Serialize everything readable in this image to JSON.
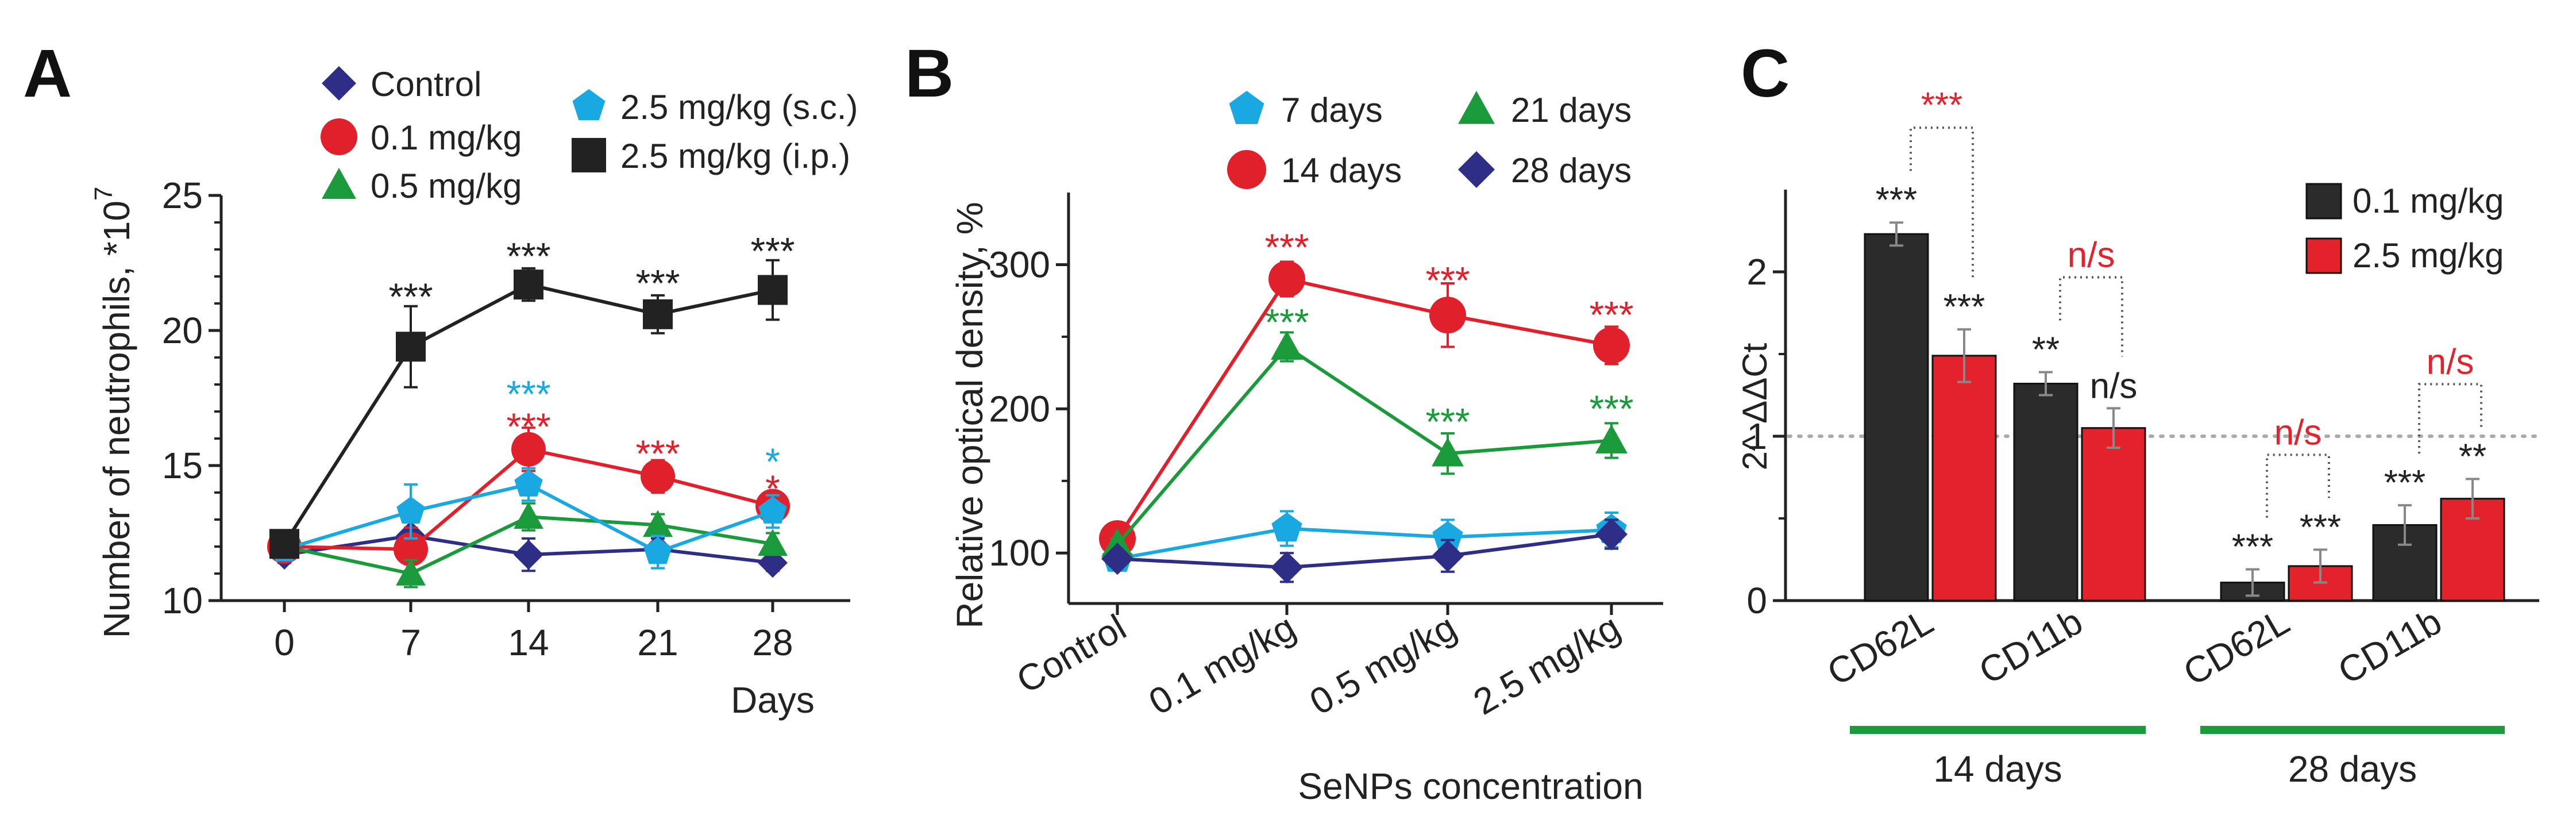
{
  "chart_data": [
    {
      "panel": "A",
      "type": "line",
      "ylabel": "Number of neutrophils, *10",
      "ylabel_exp": "7",
      "xlabel": "Days",
      "x": [
        0,
        7,
        14,
        21,
        28
      ],
      "x_ticks": [
        "0",
        "7",
        "14",
        "21",
        "28"
      ],
      "ylim": [
        10,
        25
      ],
      "y_ticks": [
        "10",
        "15",
        "20",
        "25"
      ],
      "series": [
        {
          "name": "Control",
          "marker": "diamond",
          "color": "#2e2e86",
          "values": [
            11.7,
            12.4,
            11.7,
            11.9,
            11.4
          ],
          "err": [
            0.3,
            0.5,
            0.6,
            0.4,
            0.3
          ]
        },
        {
          "name": "0.1 mg/kg",
          "marker": "circle",
          "color": "#e0202a",
          "values": [
            12.0,
            11.9,
            15.6,
            14.6,
            13.5
          ],
          "err": [
            0.3,
            0.8,
            0.8,
            0.6,
            0.5
          ]
        },
        {
          "name": "0.5 mg/kg",
          "marker": "triangle",
          "color": "#1a9a3a",
          "values": [
            12.0,
            11.0,
            13.1,
            12.8,
            12.1
          ],
          "err": [
            0.3,
            0.5,
            0.5,
            0.4,
            0.4
          ]
        },
        {
          "name": "2.5 mg/kg (s.c.)",
          "marker": "pentagon",
          "color": "#19a8e0",
          "values": [
            11.9,
            13.3,
            14.3,
            11.8,
            13.3
          ],
          "err": [
            0.3,
            1.0,
            0.6,
            0.6,
            0.6
          ]
        },
        {
          "name": "2.5 mg/kg (i.p.)",
          "marker": "square",
          "color": "#222222",
          "values": [
            12.1,
            19.4,
            21.7,
            20.6,
            21.5
          ],
          "err": [
            0.3,
            1.5,
            0.6,
            0.7,
            1.1
          ]
        }
      ],
      "annotations": [
        {
          "text": "***",
          "color": "#222222",
          "x": 7,
          "y": 21.4
        },
        {
          "text": "***",
          "color": "#222222",
          "x": 14,
          "y": 22.9
        },
        {
          "text": "***",
          "color": "#222222",
          "x": 21,
          "y": 21.9
        },
        {
          "text": "***",
          "color": "#222222",
          "x": 28,
          "y": 23.1
        },
        {
          "text": "***",
          "color": "#19a8e0",
          "x": 14,
          "y": 17.8
        },
        {
          "text": "***",
          "color": "#e0202a",
          "x": 14,
          "y": 16.6
        },
        {
          "text": "***",
          "color": "#e0202a",
          "x": 21,
          "y": 15.6
        },
        {
          "text": "*",
          "color": "#19a8e0",
          "x": 28,
          "y": 15.3
        },
        {
          "text": "*",
          "color": "#e0202a",
          "x": 28,
          "y": 14.3
        }
      ]
    },
    {
      "panel": "B",
      "type": "line",
      "ylabel": "Relative optical density, %",
      "xlabel": "SeNPs concentration",
      "categories": [
        "Control",
        "0.1 mg/kg",
        "0.5 mg/kg",
        "2.5 mg/kg"
      ],
      "ylim": [
        65,
        350
      ],
      "y_ticks": [
        "100",
        "200",
        "300"
      ],
      "series": [
        {
          "name": "7 days",
          "marker": "pentagon",
          "color": "#19a8e0",
          "values": [
            96,
            117,
            111,
            116
          ],
          "err": [
            4,
            12,
            12,
            12
          ]
        },
        {
          "name": "14 days",
          "marker": "circle",
          "color": "#e0202a",
          "values": [
            110,
            290,
            265,
            244
          ],
          "err": [
            4,
            12,
            22,
            13
          ]
        },
        {
          "name": "21 days",
          "marker": "triangle",
          "color": "#1a9a3a",
          "values": [
            106,
            243,
            169,
            178
          ],
          "err": [
            4,
            10,
            14,
            12
          ]
        },
        {
          "name": "28 days",
          "marker": "diamond",
          "color": "#2e2e86",
          "values": [
            96,
            90,
            98,
            113
          ],
          "err": [
            4,
            10,
            11,
            10
          ]
        }
      ],
      "annotations": [
        {
          "text": "***",
          "color": "#e0202a",
          "cat": 1,
          "y": 315
        },
        {
          "text": "***",
          "color": "#1a9a3a",
          "cat": 1,
          "y": 263
        },
        {
          "text": "***",
          "color": "#e0202a",
          "cat": 2,
          "y": 292
        },
        {
          "text": "***",
          "color": "#1a9a3a",
          "cat": 2,
          "y": 194
        },
        {
          "text": "***",
          "color": "#e0202a",
          "cat": 3,
          "y": 268
        },
        {
          "text": "***",
          "color": "#1a9a3a",
          "cat": 3,
          "y": 203
        }
      ]
    },
    {
      "panel": "C",
      "type": "bar",
      "ylabel": "2^-ΔΔCt",
      "ylim": [
        0,
        2.5
      ],
      "y_ticks": [
        "0",
        "1",
        "2"
      ],
      "reference_line": 1,
      "groups": [
        {
          "label": "14 days",
          "categories": [
            "CD62L",
            "CD11b"
          ]
        },
        {
          "label": "28 days",
          "categories": [
            "CD62L",
            "CD11b"
          ]
        }
      ],
      "categories": [
        "CD62L",
        "CD11b",
        "CD62L",
        "CD11b"
      ],
      "series": [
        {
          "name": "0.1 mg/kg",
          "color": "#2b2b2b",
          "values": [
            2.23,
            1.32,
            0.11,
            0.46
          ],
          "err": [
            0.07,
            0.07,
            0.08,
            0.12
          ],
          "sig": [
            "***",
            "**",
            "***",
            "***"
          ]
        },
        {
          "name": "2.5 mg/kg",
          "color": "#e3222c",
          "values": [
            1.49,
            1.05,
            0.21,
            0.62
          ],
          "err": [
            0.16,
            0.12,
            0.1,
            0.12
          ],
          "sig": [
            "***",
            "n/s",
            "***",
            "**"
          ]
        }
      ],
      "comparisons": [
        {
          "cat": 0,
          "text": "***",
          "color": "#e3222c"
        },
        {
          "cat": 1,
          "text": "n/s",
          "color": "#e3222c"
        },
        {
          "cat": 2,
          "text": "n/s",
          "color": "#e3222c"
        },
        {
          "cat": 3,
          "text": "n/s",
          "color": "#e3222c"
        }
      ]
    }
  ],
  "panels": {
    "a": "A",
    "b": "B",
    "c": "C"
  }
}
